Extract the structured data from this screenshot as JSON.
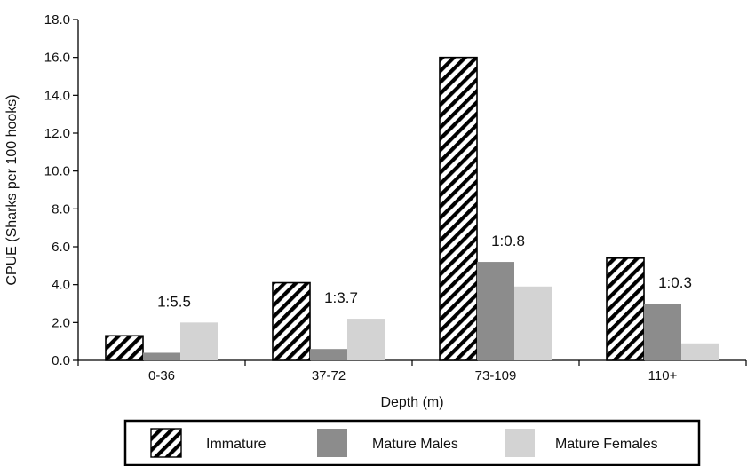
{
  "chart_data": {
    "type": "bar",
    "title": "",
    "xlabel": "Depth (m)",
    "ylabel": "CPUE (Sharks per 100 hooks)",
    "categories": [
      "0-36",
      "37-72",
      "73-109",
      "110+"
    ],
    "ylim": [
      0,
      18
    ],
    "yticks": [
      "0.0",
      "2.0",
      "4.0",
      "6.0",
      "8.0",
      "10.0",
      "12.0",
      "14.0",
      "16.0",
      "18.0"
    ],
    "series": [
      {
        "name": "Immature",
        "values": [
          1.3,
          4.1,
          16.0,
          5.4
        ],
        "pattern": "hatch",
        "color": "#000000"
      },
      {
        "name": "Mature Males",
        "values": [
          0.4,
          0.6,
          5.2,
          3.0
        ],
        "color": "#8c8c8c"
      },
      {
        "name": "Mature Females",
        "values": [
          2.0,
          2.2,
          3.9,
          0.9
        ],
        "color": "#d3d3d3"
      }
    ],
    "annotations": [
      "1:5.5",
      "1:3.7",
      "1:0.8",
      "1:0.3"
    ],
    "legend_position": "bottom",
    "grid": false
  }
}
